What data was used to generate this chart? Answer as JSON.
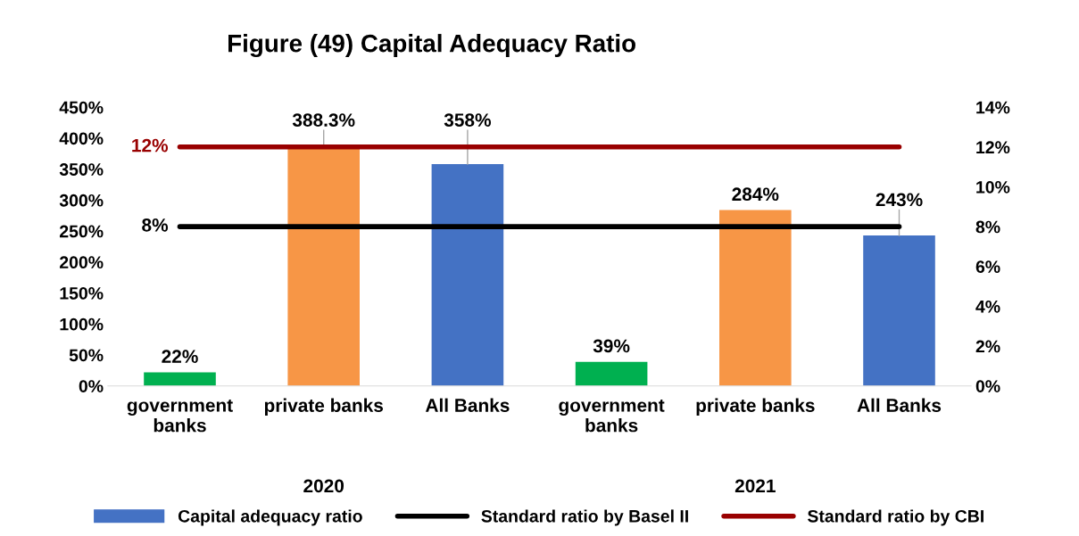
{
  "chart_data": {
    "type": "bar",
    "title": "Figure (49) Capital Adequacy Ratio",
    "categories": [
      "government banks",
      "private banks",
      "All Banks",
      "government banks",
      "private banks",
      "All Banks"
    ],
    "annotations": [
      "2020",
      "2021"
    ],
    "series": [
      {
        "name": "Capital adequacy ratio",
        "color": "#4472c4",
        "colors": [
          "#00b050",
          "#f79646",
          "#4472c4",
          "#00b050",
          "#f79646",
          "#4472c4"
        ],
        "values": [
          22,
          388.3,
          358,
          39,
          284,
          243
        ],
        "value_labels": [
          "22%",
          "388.3%",
          "358%",
          "39%",
          "284%",
          "243%"
        ]
      },
      {
        "name": "Standard ratio by Basel II",
        "type": "line",
        "axis": "y2",
        "color": "#000000",
        "values": [
          8,
          8,
          8,
          8,
          8,
          8
        ],
        "value_labels": [
          "8%",
          null,
          null,
          null,
          null,
          null
        ]
      },
      {
        "name": "Standard ratio by CBI",
        "type": "line",
        "axis": "y2",
        "color": "#990000",
        "values": [
          12,
          12,
          12,
          12,
          12,
          12
        ],
        "value_labels": [
          "12%",
          null,
          null,
          null,
          null,
          null
        ]
      }
    ],
    "ylim": [
      0,
      450
    ],
    "yticks": [
      {
        "value": 0,
        "label": "0%"
      },
      {
        "value": 50,
        "label": "50%"
      },
      {
        "value": 100,
        "label": "100%"
      },
      {
        "value": 150,
        "label": "150%"
      },
      {
        "value": 200,
        "label": "200%"
      },
      {
        "value": 250,
        "label": "250%"
      },
      {
        "value": 300,
        "label": "300%"
      },
      {
        "value": 350,
        "label": "350%"
      },
      {
        "value": 400,
        "label": "400%"
      },
      {
        "value": 450,
        "label": "450%"
      }
    ],
    "y2lim": [
      0,
      14
    ],
    "y2ticks": [
      {
        "value": 0,
        "label": "0%"
      },
      {
        "value": 2,
        "label": "2%"
      },
      {
        "value": 4,
        "label": "4%"
      },
      {
        "value": 6,
        "label": "6%"
      },
      {
        "value": 8,
        "label": "8%"
      },
      {
        "value": 10,
        "label": "10%"
      },
      {
        "value": 12,
        "label": "12%"
      },
      {
        "value": 14,
        "label": "14%"
      }
    ],
    "grid": false,
    "legend": "bottom"
  }
}
